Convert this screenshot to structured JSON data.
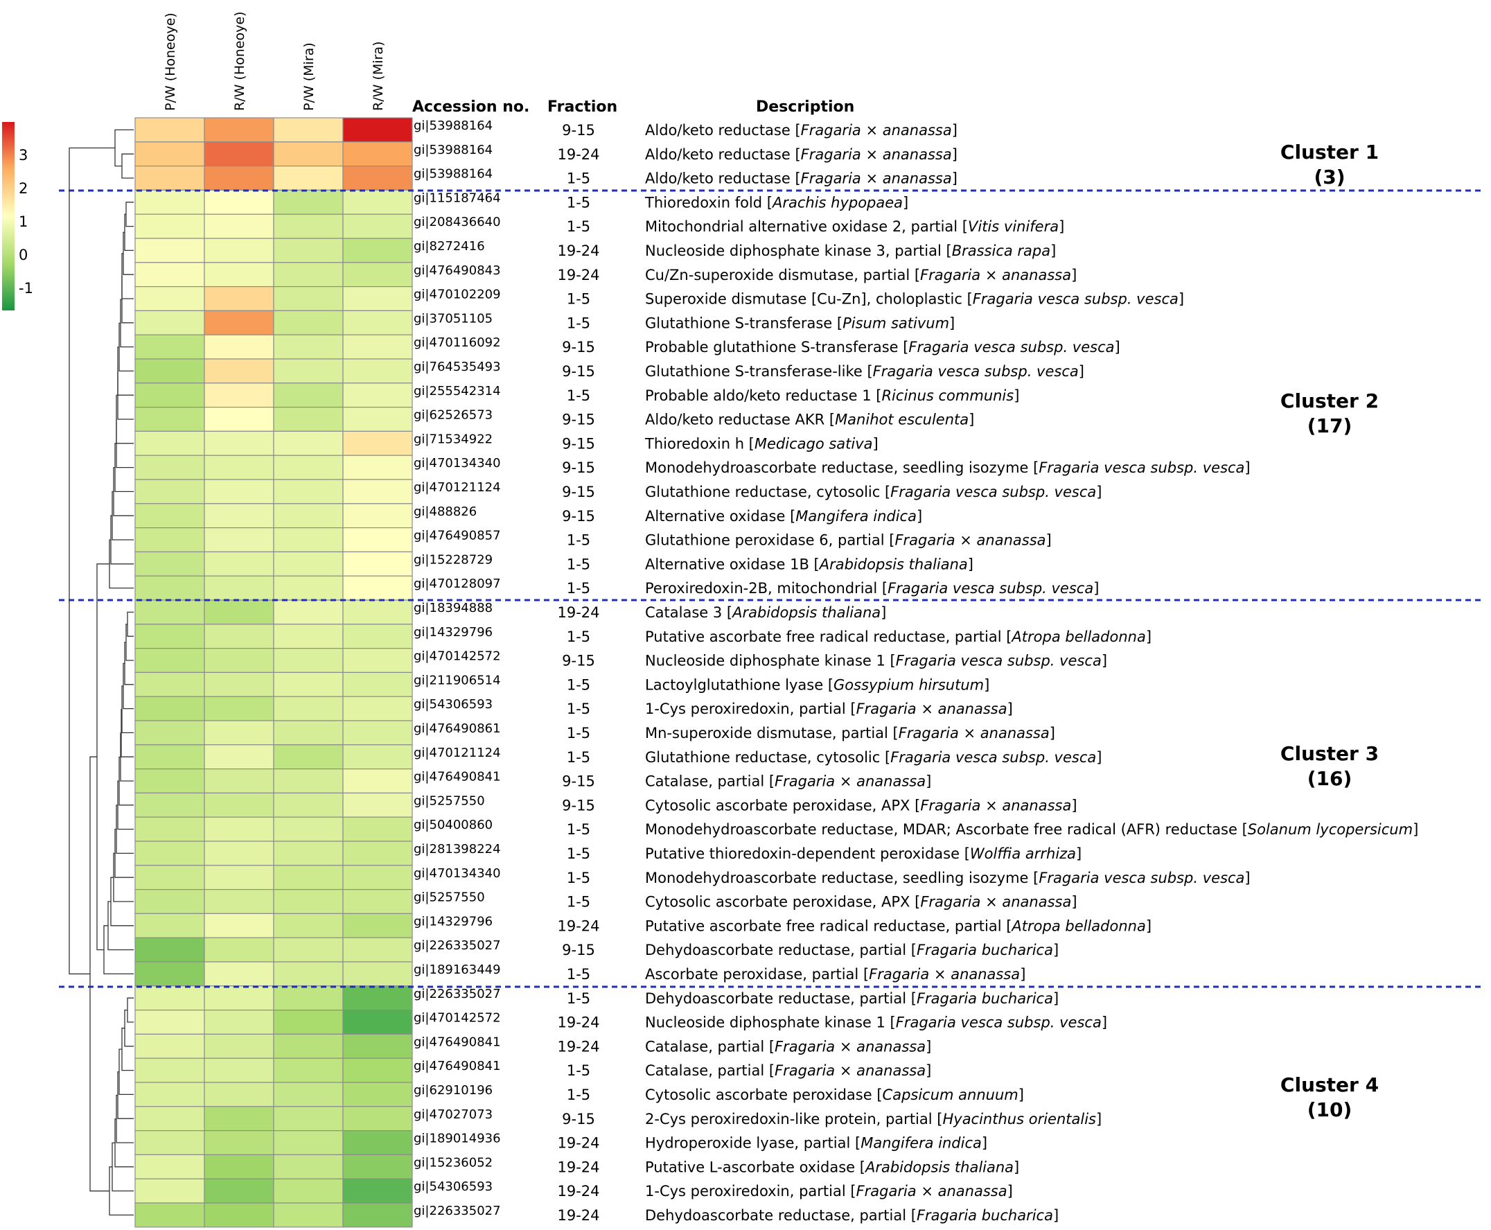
{
  "chart_data": {
    "type": "heatmap",
    "title": "",
    "columns": [
      "P/W (Honeoye)",
      "R/W (Honeoye)",
      "P/W (Mira)",
      "R/W (Mira)"
    ],
    "headers": {
      "accession": "Accession no.",
      "fraction": "Fraction",
      "description": "Description"
    },
    "color_scale": {
      "ticks": [
        "3",
        "2",
        "1",
        "0",
        "-1"
      ],
      "range": [
        -1.5,
        3.5
      ],
      "colors": [
        "#1a9641",
        "#a6d96a",
        "#ffffbf",
        "#fdae61",
        "#d7191c"
      ]
    },
    "rows": [
      {
        "accession": "gi|53988164",
        "fraction": "9-15",
        "pre": "Aldo/keto reductase [",
        "species": "Fragaria × ananassa",
        "post": "]",
        "values": [
          1.6,
          2.4,
          1.4,
          3.6
        ]
      },
      {
        "accession": "gi|53988164",
        "fraction": "19-24",
        "pre": "Aldo/keto reductase [",
        "species": "Fragaria × ananassa",
        "post": "]",
        "values": [
          1.8,
          2.8,
          1.8,
          2.3
        ]
      },
      {
        "accession": "gi|53988164",
        "fraction": "1-5",
        "pre": "Aldo/keto reductase [",
        "species": "Fragaria × ananassa",
        "post": "]",
        "values": [
          1.7,
          2.5,
          1.3,
          2.5
        ]
      },
      {
        "accession": "gi|115187464",
        "fraction": "1-5",
        "pre": "Thioredoxin fold [",
        "species": "Arachis hypopaea",
        "post": "]",
        "values": [
          0.8,
          1.0,
          0.2,
          0.6
        ]
      },
      {
        "accession": "gi|208436640",
        "fraction": "1-5",
        "pre": "Mitochondrial alternative oxidase 2, partial [",
        "species": "Vitis vinifera",
        "post": "]",
        "values": [
          0.8,
          0.9,
          0.4,
          0.5
        ]
      },
      {
        "accession": "gi|8272416",
        "fraction": "19-24",
        "pre": "Nucleoside diphosphate kinase 3, partial [",
        "species": "Brassica rapa",
        "post": "]",
        "values": [
          0.9,
          0.8,
          0.4,
          0.1
        ]
      },
      {
        "accession": "gi|476490843",
        "fraction": "19-24",
        "pre": "Cu/Zn-superoxide dismutase, partial [",
        "species": "Fragaria × ananassa",
        "post": "]",
        "values": [
          0.9,
          0.8,
          0.4,
          0.3
        ]
      },
      {
        "accession": "gi|470102209",
        "fraction": "1-5",
        "pre": "Superoxide dismutase [Cu-Zn], choloplastic [",
        "species": "Fragaria vesca subsp. vesca",
        "post": "]",
        "values": [
          0.8,
          1.6,
          0.4,
          0.7
        ]
      },
      {
        "accession": "gi|37051105",
        "fraction": "1-5",
        "pre": "Glutathione S-transferase [",
        "species": "Pisum sativum",
        "post": "]",
        "values": [
          0.6,
          2.4,
          0.3,
          0.6
        ]
      },
      {
        "accession": "gi|470116092",
        "fraction": "9-15",
        "pre": "Probable glutathione S-transferase [",
        "species": "Fragaria vesca subsp. vesca",
        "post": "]",
        "values": [
          0.1,
          1.1,
          0.5,
          0.7
        ]
      },
      {
        "accession": "gi|764535493",
        "fraction": "9-15",
        "pre": "Glutathione S-transferase-like [",
        "species": "Fragaria vesca subsp. vesca",
        "post": "]",
        "values": [
          -0.1,
          1.5,
          0.5,
          0.6
        ]
      },
      {
        "accession": "gi|255542314",
        "fraction": "1-5",
        "pre": "Probable aldo/keto reductase 1 [",
        "species": "Ricinus communis",
        "post": "]",
        "values": [
          0.0,
          1.2,
          0.2,
          0.7
        ]
      },
      {
        "accession": "gi|62526573",
        "fraction": "9-15",
        "pre": "Aldo/keto reductase AKR [",
        "species": "Manihot esculenta",
        "post": "]",
        "values": [
          0.1,
          1.0,
          0.3,
          0.7
        ]
      },
      {
        "accession": "gi|71534922",
        "fraction": "9-15",
        "pre": "Thioredoxin h [",
        "species": "Medicago sativa",
        "post": "]",
        "values": [
          0.6,
          0.7,
          0.7,
          1.4
        ]
      },
      {
        "accession": "gi|470134340",
        "fraction": "9-15",
        "pre": "Monodehydroascorbate reductase, seedling isozyme [",
        "species": "Fragaria vesca subsp. vesca",
        "post": "]",
        "values": [
          0.4,
          0.6,
          0.6,
          0.9
        ]
      },
      {
        "accession": "gi|470121124",
        "fraction": "9-15",
        "pre": "Glutathione reductase, cytosolic [",
        "species": "Fragaria vesca subsp. vesca",
        "post": "]",
        "values": [
          0.4,
          0.7,
          0.6,
          0.9
        ]
      },
      {
        "accession": "gi|488826",
        "fraction": "9-15",
        "pre": "Alternative oxidase [",
        "species": "Mangifera indica",
        "post": "]",
        "values": [
          0.3,
          0.7,
          0.6,
          0.9
        ]
      },
      {
        "accession": "gi|476490857",
        "fraction": "1-5",
        "pre": "Glutathione peroxidase 6, partial [",
        "species": "Fragaria × ananassa",
        "post": "]",
        "values": [
          0.3,
          0.7,
          0.6,
          1.0
        ]
      },
      {
        "accession": "gi|15228729",
        "fraction": "1-5",
        "pre": "Alternative oxidase 1B [",
        "species": "Arabidopsis thaliana",
        "post": "]",
        "values": [
          0.2,
          0.6,
          0.6,
          1.0
        ]
      },
      {
        "accession": "gi|470128097",
        "fraction": "1-5",
        "pre": "Peroxiredoxin-2B, mitochondrial [",
        "species": "Fragaria vesca subsp. vesca",
        "post": "]",
        "values": [
          0.2,
          0.5,
          0.6,
          1.0
        ]
      },
      {
        "accession": "gi|18394888",
        "fraction": "19-24",
        "pre": "Catalase 3 [",
        "species": "Arabidopsis thaliana",
        "post": "]",
        "values": [
          0.2,
          0.0,
          0.7,
          0.6
        ]
      },
      {
        "accession": "gi|14329796",
        "fraction": "1-5",
        "pre": "Putative ascorbate free radical reductase, partial [",
        "species": "Atropa belladonna",
        "post": "]",
        "values": [
          0.1,
          0.4,
          0.6,
          0.5
        ]
      },
      {
        "accession": "gi|470142572",
        "fraction": "9-15",
        "pre": "Nucleoside diphosphate kinase 1 [",
        "species": "Fragaria vesca subsp. vesca",
        "post": "]",
        "values": [
          0.1,
          0.3,
          0.5,
          0.6
        ]
      },
      {
        "accession": "gi|211906514",
        "fraction": "1-5",
        "pre": "Lactoylglutathione lyase [",
        "species": "Gossypium hirsutum",
        "post": "]",
        "values": [
          0.3,
          0.4,
          0.6,
          0.5
        ]
      },
      {
        "accession": "gi|54306593",
        "fraction": "1-5",
        "pre": "1-Cys peroxiredoxin, partial [",
        "species": "Fragaria × ananassa",
        "post": "]",
        "values": [
          0.0,
          0.1,
          0.5,
          0.6
        ]
      },
      {
        "accession": "gi|476490861",
        "fraction": "1-5",
        "pre": "Mn-superoxide dismutase, partial [",
        "species": "Fragaria × ananassa",
        "post": "]",
        "values": [
          0.2,
          0.6,
          0.4,
          0.5
        ]
      },
      {
        "accession": "gi|470121124",
        "fraction": "1-5",
        "pre": "Glutathione reductase, cytosolic [",
        "species": "Fragaria vesca subsp. vesca",
        "post": "]",
        "values": [
          0.1,
          0.7,
          0.1,
          0.5
        ]
      },
      {
        "accession": "gi|476490841",
        "fraction": "9-15",
        "pre": "Catalase, partial [",
        "species": "Fragaria × ananassa",
        "post": "]",
        "values": [
          0.1,
          0.4,
          0.4,
          0.8
        ]
      },
      {
        "accession": "gi|5257550",
        "fraction": "9-15",
        "pre": "Cytosolic ascorbate peroxidase, APX [",
        "species": "Fragaria × ananassa",
        "post": "]",
        "values": [
          0.2,
          0.3,
          0.4,
          0.7
        ]
      },
      {
        "accession": "gi|50400860",
        "fraction": "1-5",
        "pre": "Monodehydroascorbate reductase, MDAR; Ascorbate free radical (AFR) reductase [",
        "species": "Solanum lycopersicum",
        "post": "]",
        "values": [
          0.3,
          0.6,
          0.5,
          0.3
        ]
      },
      {
        "accession": "gi|281398224",
        "fraction": "1-5",
        "pre": "Putative thioredoxin-dependent peroxidase [",
        "species": "Wolffia arrhiza",
        "post": "]",
        "values": [
          0.3,
          0.6,
          0.4,
          0.3
        ]
      },
      {
        "accession": "gi|470134340",
        "fraction": "1-5",
        "pre": "Monodehydroascorbate reductase, seedling isozyme [",
        "species": "Fragaria vesca subsp. vesca",
        "post": "]",
        "values": [
          0.3,
          0.6,
          0.3,
          0.3
        ]
      },
      {
        "accession": "gi|5257550",
        "fraction": "1-5",
        "pre": "Cytosolic ascorbate peroxidase, APX [",
        "species": "Fragaria × ananassa",
        "post": "]",
        "values": [
          0.2,
          0.4,
          0.3,
          0.3
        ]
      },
      {
        "accession": "gi|14329796",
        "fraction": "19-24",
        "pre": "Putative ascorbate free radical reductase, partial [",
        "species": "Atropa belladonna",
        "post": "]",
        "values": [
          0.3,
          0.8,
          0.3,
          0.0
        ]
      },
      {
        "accession": "gi|226335027",
        "fraction": "9-15",
        "pre": "Dehydoascorbate reductase, partial [",
        "species": "Fragaria bucharica",
        "post": "]",
        "values": [
          -0.6,
          0.3,
          0.4,
          0.4
        ]
      },
      {
        "accession": "gi|189163449",
        "fraction": "1-5",
        "pre": "Ascorbate peroxidase, partial [",
        "species": "Fragaria × ananassa",
        "post": "]",
        "values": [
          -0.5,
          0.7,
          0.4,
          0.4
        ]
      },
      {
        "accession": "gi|226335027",
        "fraction": "1-5",
        "pre": "Dehydoascorbate reductase, partial [",
        "species": "Fragaria bucharica",
        "post": "]",
        "values": [
          0.6,
          0.6,
          0.1,
          -0.8
        ]
      },
      {
        "accession": "gi|470142572",
        "fraction": "19-24",
        "pre": "Nucleoside diphosphate kinase 1 [",
        "species": "Fragaria vesca subsp. vesca",
        "post": "]",
        "values": [
          0.7,
          0.5,
          -0.2,
          -1.0
        ]
      },
      {
        "accession": "gi|476490841",
        "fraction": "19-24",
        "pre": "Catalase, partial [",
        "species": "Fragaria × ananassa",
        "post": "]",
        "values": [
          0.6,
          0.4,
          0.0,
          -0.4
        ]
      },
      {
        "accession": "gi|476490841",
        "fraction": "1-5",
        "pre": "Catalase, partial [",
        "species": "Fragaria × ananassa",
        "post": "]",
        "values": [
          0.5,
          0.5,
          0.1,
          -0.2
        ]
      },
      {
        "accession": "gi|62910196",
        "fraction": "1-5",
        "pre": "Cytosolic ascorbate peroxidase [",
        "species": "Capsicum annuum",
        "post": "]",
        "values": [
          0.5,
          0.4,
          0.2,
          -0.1
        ]
      },
      {
        "accession": "gi|47027073",
        "fraction": "9-15",
        "pre": "2-Cys peroxiredoxin-like protein, partial [",
        "species": "Hyacinthus orientalis",
        "post": "]",
        "values": [
          0.5,
          -0.1,
          0.2,
          0.0
        ]
      },
      {
        "accession": "gi|189014936",
        "fraction": "19-24",
        "pre": "Hydroperoxide lyase, partial [",
        "species": "Mangifera indica",
        "post": "]",
        "values": [
          0.4,
          0.0,
          0.2,
          -0.6
        ]
      },
      {
        "accession": "gi|15236052",
        "fraction": "19-24",
        "pre": "Putative L-ascorbate oxidase [",
        "species": "Arabidopsis thaliana",
        "post": "]",
        "values": [
          0.6,
          -0.3,
          0.2,
          -0.5
        ]
      },
      {
        "accession": "gi|54306593",
        "fraction": "19-24",
        "pre": "1-Cys peroxiredoxin, partial [",
        "species": "Fragaria × ananassa",
        "post": "]",
        "values": [
          0.6,
          -0.5,
          0.1,
          -0.9
        ]
      },
      {
        "accession": "gi|226335027",
        "fraction": "19-24",
        "pre": "Dehydoascorbate reductase, partial [",
        "species": "Fragaria bucharica",
        "post": "]",
        "values": [
          -0.1,
          -0.3,
          0.1,
          -0.6
        ]
      }
    ],
    "clusters": [
      {
        "name": "Cluster 1",
        "count": "(3)",
        "rows": [
          0,
          2
        ]
      },
      {
        "name": "Cluster 2",
        "count": "(17)",
        "rows": [
          3,
          19
        ]
      },
      {
        "name": "Cluster 3",
        "count": "(16)",
        "rows": [
          20,
          35
        ]
      },
      {
        "name": "Cluster 4",
        "count": "(10)",
        "rows": [
          36,
          45
        ]
      }
    ]
  }
}
